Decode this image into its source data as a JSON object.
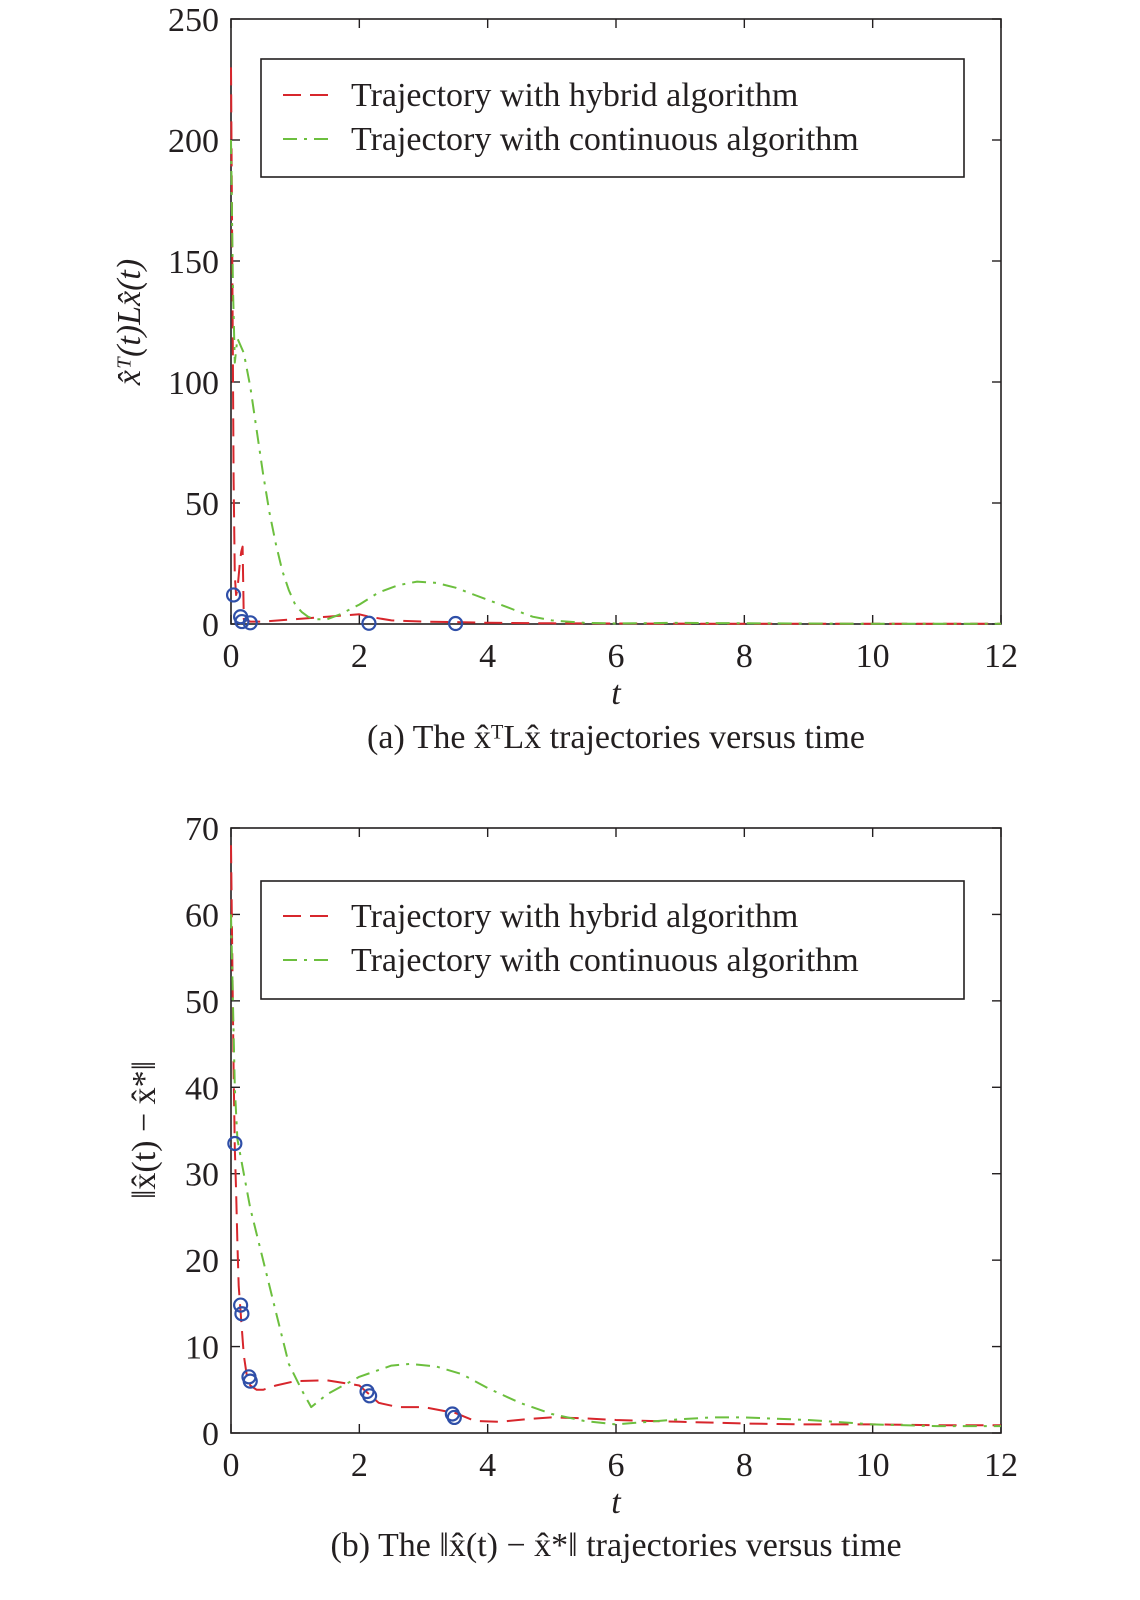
{
  "chart_data": [
    {
      "type": "line",
      "caption": "(a) The x̂ᵀLx̂ trajectories versus time",
      "xlabel": "t",
      "ylabel": "x̂ᵀ(t)Lx̂(t)",
      "xlim": [
        0,
        12
      ],
      "ylim": [
        0,
        250
      ],
      "xticks": [
        0,
        2,
        4,
        6,
        8,
        10,
        12
      ],
      "yticks": [
        0,
        50,
        100,
        150,
        200,
        250
      ],
      "legend_position": "top-right",
      "series": [
        {
          "name": "Trajectory with hybrid algorithm",
          "color": "#d7262c",
          "dash": "dashed",
          "x": [
            0,
            0.02,
            0.04,
            0.06,
            0.08,
            0.1,
            0.12,
            0.14,
            0.16,
            0.18,
            0.2,
            0.3,
            0.5,
            1.0,
            1.5,
            2.0,
            2.15,
            2.5,
            3.0,
            3.5,
            4.0,
            5.0,
            6.0,
            8.0,
            10.0,
            12.0
          ],
          "y": [
            230,
            150,
            60,
            20,
            12,
            14,
            20,
            26,
            30,
            32,
            2,
            1,
            1,
            2,
            3,
            4,
            3,
            1.5,
            1,
            0.8,
            0.5,
            0.3,
            0.2,
            0.1,
            0.1,
            0.1
          ]
        },
        {
          "name": "Trajectory with continuous algorithm",
          "color": "#6cbf3e",
          "dash": "dashdot",
          "x": [
            0,
            0.03,
            0.06,
            0.1,
            0.2,
            0.3,
            0.4,
            0.5,
            0.6,
            0.7,
            0.8,
            0.9,
            1.0,
            1.1,
            1.2,
            1.3,
            1.5,
            1.7,
            2.0,
            2.3,
            2.6,
            2.9,
            3.2,
            3.5,
            3.8,
            4.1,
            4.4,
            4.7,
            5.0,
            5.5,
            6.0,
            7.0,
            8.0,
            10.0,
            12.0
          ],
          "y": [
            200,
            140,
            108,
            118,
            112,
            98,
            80,
            62,
            46,
            33,
            22,
            14,
            8,
            5,
            3,
            2,
            2,
            4,
            8,
            13,
            16,
            17.5,
            17,
            15,
            12,
            9,
            6,
            3,
            1.5,
            0.5,
            0.2,
            0.5,
            0.3,
            0.1,
            0.1
          ]
        }
      ],
      "markers": {
        "color": "#2f4fa8",
        "shape": "circle",
        "x": [
          0.04,
          0.15,
          0.17,
          0.3,
          2.15,
          3.5
        ],
        "y": [
          12,
          3,
          1,
          0.5,
          0.3,
          0.2
        ]
      }
    },
    {
      "type": "line",
      "caption": "(b) The ‖x̂(t) − x̂*‖ trajectories versus time",
      "xlabel": "t",
      "ylabel": "‖x̂(t) − x̂*‖",
      "xlim": [
        0,
        12
      ],
      "ylim": [
        0,
        70
      ],
      "xticks": [
        0,
        2,
        4,
        6,
        8,
        10,
        12
      ],
      "yticks": [
        0,
        10,
        20,
        30,
        40,
        50,
        60,
        70
      ],
      "legend_position": "top-right",
      "series": [
        {
          "name": "Trajectory with hybrid algorithm",
          "color": "#d7262c",
          "dash": "dashed",
          "x": [
            0,
            0.02,
            0.04,
            0.06,
            0.08,
            0.1,
            0.12,
            0.15,
            0.2,
            0.25,
            0.3,
            0.4,
            0.5,
            0.7,
            1.0,
            1.5,
            2.0,
            2.15,
            2.3,
            2.6,
            3.0,
            3.5,
            3.8,
            4.2,
            4.6,
            5.0,
            5.5,
            6.0,
            7.0,
            8.0,
            9.0,
            10.0,
            11.0,
            12.0
          ],
          "y": [
            68,
            55,
            42,
            33,
            28,
            22,
            17,
            14,
            9,
            6.5,
            5.5,
            5,
            5,
            5.5,
            6,
            6.1,
            5.5,
            4.5,
            3.5,
            3,
            3,
            2.3,
            1.4,
            1.3,
            1.6,
            1.8,
            1.7,
            1.5,
            1.3,
            1.1,
            1.0,
            1.0,
            0.9,
            0.9
          ]
        },
        {
          "name": "Trajectory with continuous algorithm",
          "color": "#6cbf3e",
          "dash": "dashdot",
          "x": [
            0,
            0.03,
            0.06,
            0.1,
            0.2,
            0.3,
            0.5,
            0.7,
            0.9,
            1.1,
            1.25,
            1.5,
            2.0,
            2.5,
            2.8,
            3.2,
            3.6,
            4.0,
            4.5,
            5.0,
            5.5,
            6.0,
            6.5,
            7.0,
            7.5,
            8.0,
            9.0,
            10.0,
            11.0,
            12.0
          ],
          "y": [
            60,
            50,
            40,
            34,
            30,
            26,
            20,
            14,
            8,
            5,
            3,
            4.5,
            6.5,
            7.8,
            8,
            7.7,
            6.8,
            5.2,
            3.5,
            2.2,
            1.4,
            1.0,
            1.3,
            1.6,
            1.8,
            1.8,
            1.5,
            1.0,
            0.8,
            0.8
          ]
        }
      ],
      "markers": {
        "color": "#2f4fa8",
        "shape": "circle",
        "x": [
          0.06,
          0.15,
          0.17,
          0.28,
          0.3,
          2.12,
          2.16,
          3.45,
          3.48
        ],
        "y": [
          33.5,
          14.8,
          13.8,
          6.5,
          6.0,
          4.8,
          4.3,
          2.2,
          1.8
        ]
      }
    }
  ]
}
